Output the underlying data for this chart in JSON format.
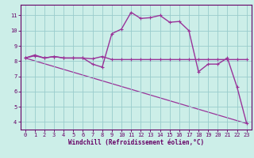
{
  "title": "",
  "xlabel": "Windchill (Refroidissement éolien,°C)",
  "bg_color": "#cceee8",
  "line_color": "#993399",
  "grid_color": "#99cccc",
  "axis_color": "#660066",
  "spine_color": "#660066",
  "xlim": [
    -0.5,
    23.5
  ],
  "ylim": [
    3.5,
    11.7
  ],
  "xticks": [
    0,
    1,
    2,
    3,
    4,
    5,
    6,
    7,
    8,
    9,
    10,
    11,
    12,
    13,
    14,
    15,
    16,
    17,
    18,
    19,
    20,
    21,
    22,
    23
  ],
  "yticks": [
    4,
    5,
    6,
    7,
    8,
    9,
    10,
    11
  ],
  "line1_x": [
    0,
    1,
    2,
    3,
    4,
    5,
    6,
    7,
    8,
    9,
    10,
    11,
    12,
    13,
    14,
    15,
    16,
    17,
    18,
    19,
    20,
    21,
    22,
    23
  ],
  "line1_y": [
    8.2,
    8.4,
    8.2,
    8.3,
    8.2,
    8.2,
    8.2,
    7.8,
    7.6,
    9.8,
    10.1,
    11.2,
    10.8,
    10.85,
    11.0,
    10.55,
    10.6,
    10.0,
    7.3,
    7.8,
    7.8,
    8.2,
    6.3,
    3.9
  ],
  "line2_x": [
    0,
    1,
    2,
    3,
    4,
    5,
    6,
    7,
    8,
    9,
    10,
    11,
    12,
    13,
    14,
    15,
    16,
    17,
    18,
    19,
    20,
    21,
    22,
    23
  ],
  "line2_y": [
    8.2,
    8.35,
    8.2,
    8.3,
    8.2,
    8.2,
    8.2,
    8.15,
    8.3,
    8.1,
    8.1,
    8.1,
    8.1,
    8.1,
    8.1,
    8.1,
    8.1,
    8.1,
    8.1,
    8.1,
    8.1,
    8.1,
    8.1,
    8.1
  ],
  "line3_x": [
    0,
    23
  ],
  "line3_y": [
    8.2,
    3.9
  ],
  "marker": "+"
}
